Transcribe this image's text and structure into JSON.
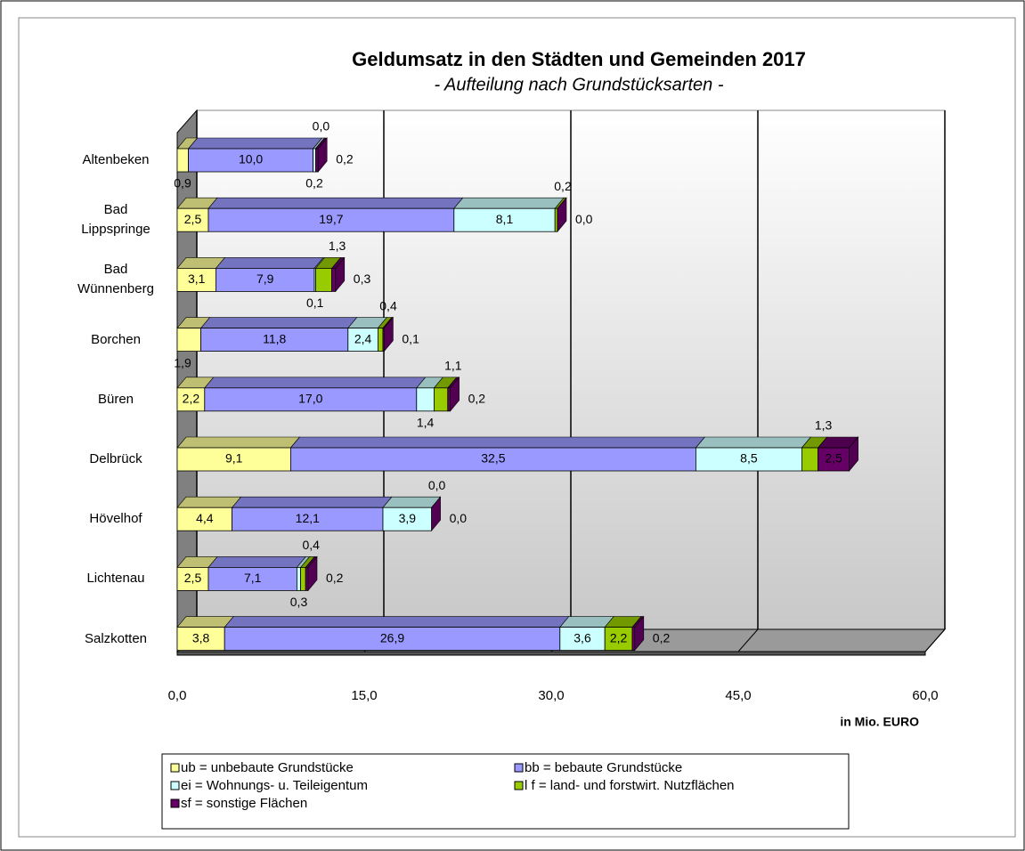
{
  "chart_data": {
    "type": "bar3d_stacked_horizontal",
    "title": "Geldumsatz in den Städten und Gemeinden 2017",
    "subtitle": "- Aufteilung nach Grundstücksarten -",
    "x_label": "in Mio. EURO",
    "categories": [
      "Altenbeken",
      "Bad Lippspringe",
      "Bad Wünnenberg",
      "Borchen",
      "Büren",
      "Delbrück",
      "Hövelhof",
      "Lichtenau",
      "Salzkotten"
    ],
    "series": [
      {
        "name": "ub = unbebaute Grundstücke",
        "color": "#ffff99",
        "values": [
          0.9,
          2.5,
          3.1,
          1.9,
          2.2,
          9.1,
          4.4,
          2.5,
          3.8
        ],
        "value_labels": [
          "0,9",
          "2,5",
          "3,1",
          "1,9",
          "2,2",
          "9,1",
          "4,4",
          "2,5",
          "3,8"
        ]
      },
      {
        "name": "bb = bebaute Grundstücke",
        "color": "#9999ff",
        "values": [
          10.0,
          19.7,
          7.9,
          11.8,
          17.0,
          32.5,
          12.1,
          7.1,
          26.9
        ],
        "value_labels": [
          "10,0",
          "19,7",
          "7,9",
          "11,8",
          "17,0",
          "32,5",
          "12,1",
          "7,1",
          "26,9"
        ]
      },
      {
        "name": "ei = Wohnungs- u. Teileigentum",
        "color": "#ccffff",
        "values": [
          0.2,
          8.1,
          0.1,
          2.4,
          1.4,
          8.5,
          3.9,
          0.3,
          3.6
        ],
        "value_labels": [
          "0,2",
          "8,1",
          "0,1",
          "2,4",
          "1,4",
          "8,5",
          "3,9",
          "0,3",
          "3,6"
        ]
      },
      {
        "name": "l f = land- und forstwirt. Nutzflächen",
        "color": "#99cc00",
        "values": [
          0.0,
          0.2,
          1.3,
          0.4,
          1.1,
          1.3,
          0.0,
          0.4,
          2.2
        ],
        "value_labels": [
          "0,0",
          "0,2",
          "1,3",
          "0,4",
          "1,1",
          "1,3",
          "0,0",
          "0,4",
          "2,2"
        ]
      },
      {
        "name": "sf = sonstige Flächen",
        "color": "#660066",
        "values": [
          0.2,
          0.0,
          0.3,
          0.1,
          0.2,
          2.5,
          0.0,
          0.2,
          0.2
        ],
        "value_labels": [
          "0,2",
          "0,0",
          "0,3",
          "0,1",
          "0,2",
          "2,5",
          "0,0",
          "0,2",
          "0,2"
        ]
      }
    ],
    "xlim": [
      0,
      60
    ],
    "xticks": [
      {
        "value": 0,
        "label": "0,0"
      },
      {
        "value": 15,
        "label": "15,0"
      },
      {
        "value": 30,
        "label": "30,0"
      },
      {
        "value": 45,
        "label": "45,0"
      },
      {
        "value": 60,
        "label": "60,0"
      }
    ],
    "grid": true
  }
}
